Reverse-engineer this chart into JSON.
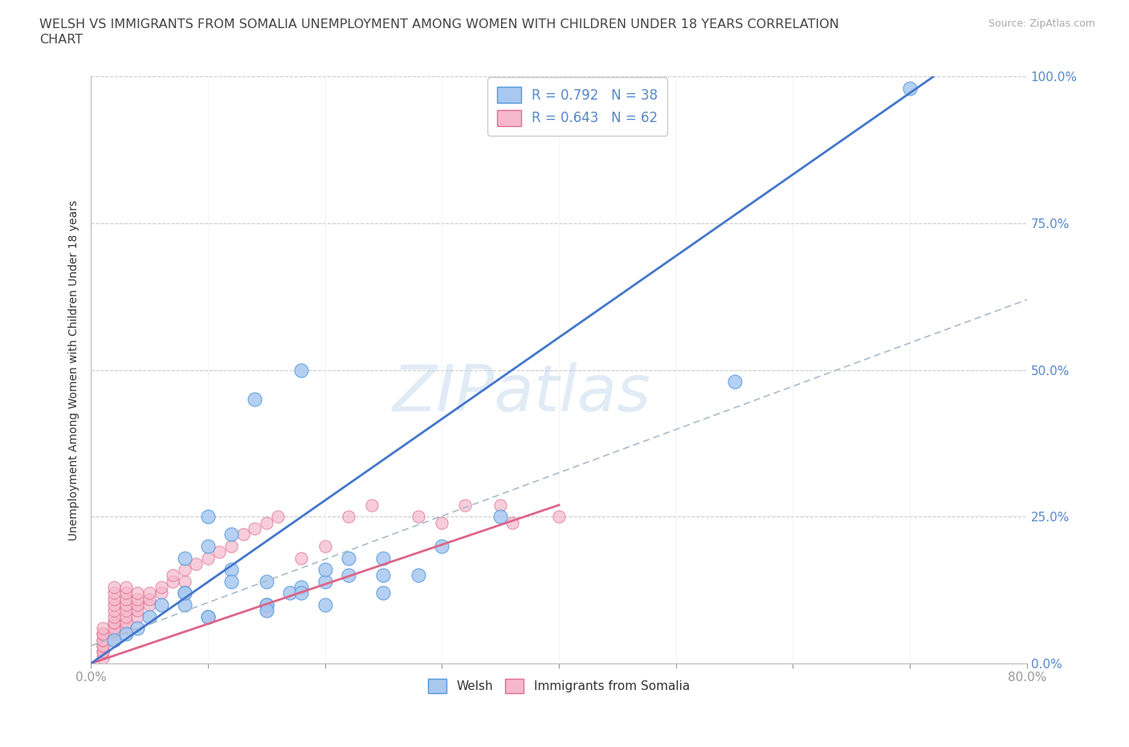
{
  "title_line1": "WELSH VS IMMIGRANTS FROM SOMALIA UNEMPLOYMENT AMONG WOMEN WITH CHILDREN UNDER 18 YEARS CORRELATION",
  "title_line2": "CHART",
  "source": "Source: ZipAtlas.com",
  "ylabel": "Unemployment Among Women with Children Under 18 years",
  "xlim": [
    0.0,
    0.8
  ],
  "ylim": [
    0.0,
    1.0
  ],
  "xticks": [
    0.0,
    0.1,
    0.2,
    0.3,
    0.4,
    0.5,
    0.6,
    0.7,
    0.8
  ],
  "xticklabels": [
    "0.0%",
    "",
    "",
    "",
    "",
    "",
    "",
    "",
    "80.0%"
  ],
  "yticks": [
    0.0,
    0.25,
    0.5,
    0.75,
    1.0
  ],
  "yticklabels": [
    "0.0%",
    "25.0%",
    "50.0%",
    "75.0%",
    "100.0%"
  ],
  "welsh_color": "#a8c8f0",
  "welsh_edge_color": "#5599dd",
  "somalia_color": "#f5b8cc",
  "somalia_edge_color": "#e07090",
  "welsh_line_color": "#4477cc",
  "somalia_line_color": "#dd6688",
  "ref_line_color": "#aabbcc",
  "legend_R_welsh": "R = 0.792",
  "legend_N_welsh": "N = 38",
  "legend_R_somalia": "R = 0.643",
  "legend_N_somalia": "N = 62",
  "watermark": "ZIPatlas",
  "grid_color": "#cccccc",
  "background_color": "#ffffff",
  "welsh_scatter_x": [
    0.25,
    0.17,
    0.2,
    0.22,
    0.15,
    0.18,
    0.1,
    0.12,
    0.08,
    0.3,
    0.25,
    0.2,
    0.15,
    0.18,
    0.12,
    0.1,
    0.08,
    0.14,
    0.22,
    0.18,
    0.15,
    0.12,
    0.1,
    0.08,
    0.05,
    0.06,
    0.04,
    0.03,
    0.02,
    0.55,
    0.7,
    0.35,
    0.28,
    0.25,
    0.2,
    0.15,
    0.1,
    0.08
  ],
  "welsh_scatter_y": [
    0.15,
    0.12,
    0.14,
    0.18,
    0.1,
    0.13,
    0.08,
    0.16,
    0.12,
    0.2,
    0.18,
    0.16,
    0.14,
    0.5,
    0.22,
    0.2,
    0.18,
    0.45,
    0.15,
    0.12,
    0.1,
    0.14,
    0.25,
    0.1,
    0.08,
    0.1,
    0.06,
    0.05,
    0.04,
    0.48,
    0.98,
    0.25,
    0.15,
    0.12,
    0.1,
    0.09,
    0.08,
    0.12
  ],
  "somalia_scatter_x": [
    0.01,
    0.01,
    0.01,
    0.01,
    0.01,
    0.01,
    0.01,
    0.01,
    0.01,
    0.01,
    0.02,
    0.02,
    0.02,
    0.02,
    0.02,
    0.02,
    0.02,
    0.02,
    0.02,
    0.02,
    0.02,
    0.03,
    0.03,
    0.03,
    0.03,
    0.03,
    0.03,
    0.03,
    0.03,
    0.04,
    0.04,
    0.04,
    0.04,
    0.04,
    0.05,
    0.05,
    0.05,
    0.06,
    0.06,
    0.07,
    0.07,
    0.08,
    0.08,
    0.09,
    0.1,
    0.11,
    0.12,
    0.13,
    0.14,
    0.15,
    0.15,
    0.16,
    0.18,
    0.2,
    0.22,
    0.24,
    0.28,
    0.3,
    0.32,
    0.35,
    0.36,
    0.4
  ],
  "somalia_scatter_y": [
    0.01,
    0.02,
    0.02,
    0.03,
    0.03,
    0.04,
    0.04,
    0.05,
    0.05,
    0.06,
    0.04,
    0.05,
    0.06,
    0.07,
    0.07,
    0.08,
    0.09,
    0.1,
    0.11,
    0.12,
    0.13,
    0.06,
    0.07,
    0.08,
    0.09,
    0.1,
    0.11,
    0.12,
    0.13,
    0.08,
    0.09,
    0.1,
    0.11,
    0.12,
    0.1,
    0.11,
    0.12,
    0.12,
    0.13,
    0.14,
    0.15,
    0.14,
    0.16,
    0.17,
    0.18,
    0.19,
    0.2,
    0.22,
    0.23,
    0.09,
    0.24,
    0.25,
    0.18,
    0.2,
    0.25,
    0.27,
    0.25,
    0.24,
    0.27,
    0.27,
    0.24,
    0.25
  ],
  "welsh_line_x": [
    0.0,
    0.72
  ],
  "welsh_line_y": [
    0.0,
    1.0
  ],
  "somalia_solid_line_x": [
    0.0,
    0.4
  ],
  "somalia_solid_line_y": [
    0.0,
    0.27
  ],
  "somalia_dash_line_x": [
    0.0,
    0.8
  ],
  "somalia_dash_line_y": [
    0.03,
    0.62
  ]
}
